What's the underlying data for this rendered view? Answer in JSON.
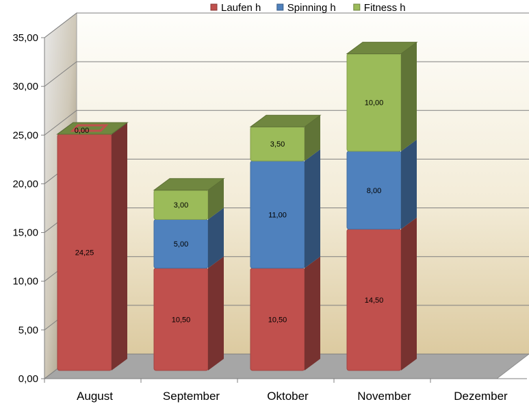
{
  "chart_data": {
    "type": "bar",
    "stacked": true,
    "three_d": true,
    "categories": [
      "August",
      "September",
      "Oktober",
      "November",
      "Dezember"
    ],
    "series": [
      {
        "name": "Laufen h",
        "color": "#c0504d",
        "values": [
          24.25,
          10.5,
          10.5,
          14.5,
          null
        ],
        "labels": [
          "24,25",
          "10,50",
          "10,50",
          "14,50",
          ""
        ]
      },
      {
        "name": "Spinning h",
        "color": "#4f81bd",
        "values": [
          0,
          5.0,
          11.0,
          8.0,
          null
        ],
        "labels": [
          "",
          "5,00",
          "11,00",
          "8,00",
          ""
        ]
      },
      {
        "name": "Fitness h",
        "color": "#9bbb59",
        "values": [
          0,
          3.0,
          3.5,
          10.0,
          null
        ],
        "labels": [
          "0,00",
          "3,00",
          "3,50",
          "10,00",
          ""
        ]
      }
    ],
    "ylim": [
      0,
      35
    ],
    "yticks": [
      0,
      5,
      10,
      15,
      20,
      25,
      30,
      35
    ],
    "ytick_labels": [
      "0,00",
      "5,00",
      "10,00",
      "15,00",
      "20,00",
      "25,00",
      "30,00",
      "35,00"
    ],
    "grid": true,
    "legend_position": "top",
    "xlabel": "",
    "ylabel": "",
    "title": ""
  }
}
